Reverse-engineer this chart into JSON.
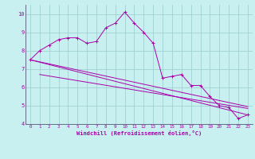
{
  "x": [
    0,
    1,
    2,
    3,
    4,
    5,
    6,
    7,
    8,
    9,
    10,
    11,
    12,
    13,
    14,
    15,
    16,
    17,
    18,
    19,
    20,
    21,
    22,
    23
  ],
  "line_main": [
    7.5,
    8.0,
    8.3,
    8.6,
    8.7,
    8.7,
    8.4,
    8.5,
    9.25,
    9.5,
    10.1,
    9.5,
    9.0,
    8.4,
    6.5,
    6.6,
    6.7,
    6.1,
    6.1,
    5.5,
    5.0,
    4.9,
    4.3,
    4.5
  ],
  "line_trend1": [
    [
      0,
      7.5
    ],
    [
      23,
      4.5
    ]
  ],
  "line_trend2": [
    [
      0,
      7.5
    ],
    [
      23,
      4.95
    ]
  ],
  "line_flat": [
    [
      1,
      6.7
    ],
    [
      23,
      4.85
    ]
  ],
  "bg_color": "#c8f0f0",
  "grid_color": "#99cccc",
  "line_color": "#aa00aa",
  "xlabel": "Windchill (Refroidissement éolien,°C)",
  "ylim": [
    4,
    10.5
  ],
  "xlim": [
    -0.5,
    23.5
  ],
  "yticks": [
    4,
    5,
    6,
    7,
    8,
    9,
    10
  ],
  "xticks": [
    0,
    1,
    2,
    3,
    4,
    5,
    6,
    7,
    8,
    9,
    10,
    11,
    12,
    13,
    14,
    15,
    16,
    17,
    18,
    19,
    20,
    21,
    22,
    23
  ]
}
